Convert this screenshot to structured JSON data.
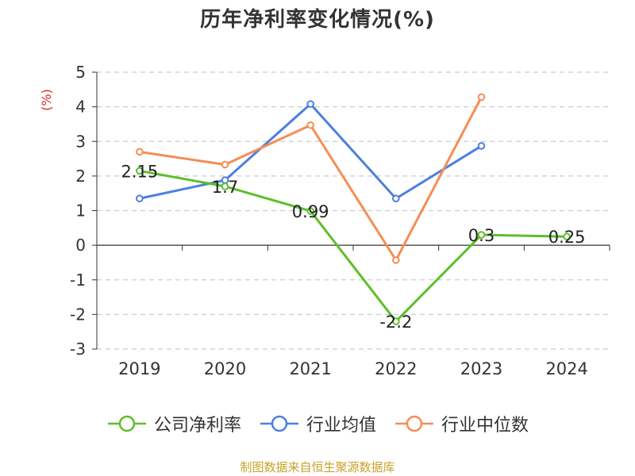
{
  "chart_data": {
    "type": "line",
    "title": "历年净利率变化情况(%)",
    "ylabel": "(%)",
    "xlabel": "",
    "categories": [
      "2019",
      "2020",
      "2021",
      "2022",
      "2023",
      "2024"
    ],
    "ylim": [
      -3,
      5
    ],
    "yticks": [
      "5",
      "4",
      "3",
      "2",
      "1",
      "0",
      "-1",
      "-2",
      "-3"
    ],
    "grid": true,
    "legend_position": "bottom",
    "series": [
      {
        "name": "公司净利率",
        "color": "#5dbf2a",
        "values": [
          2.15,
          1.7,
          0.99,
          -2.2,
          0.3,
          0.25
        ],
        "labels": [
          "2.15",
          "1.7",
          "0.99",
          "-2.2",
          "0.3",
          "0.25"
        ]
      },
      {
        "name": "行业均值",
        "color": "#4e7fe0",
        "values": [
          1.35,
          1.88,
          4.08,
          1.35,
          2.87,
          null
        ]
      },
      {
        "name": "行业中位数",
        "color": "#f58d54",
        "values": [
          2.7,
          2.33,
          3.47,
          -0.43,
          4.28,
          null
        ]
      }
    ]
  },
  "source_note": "制图数据来自恒生聚源数据库"
}
